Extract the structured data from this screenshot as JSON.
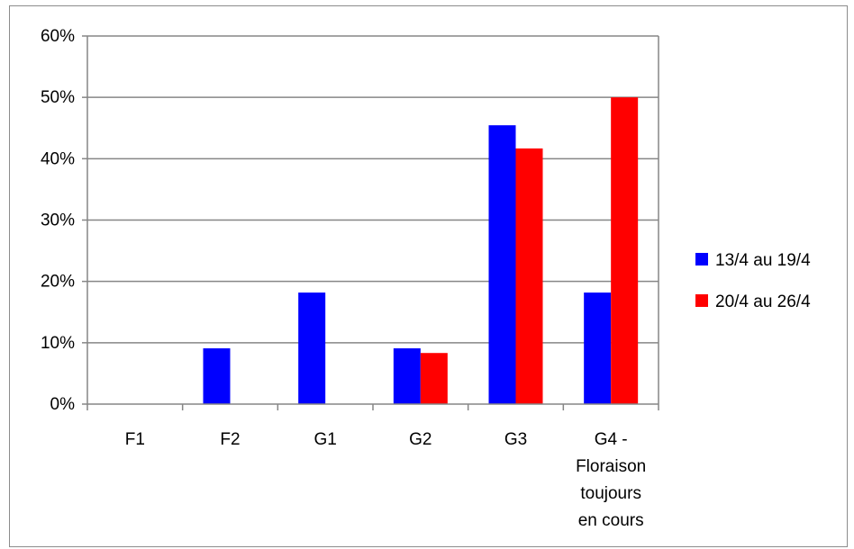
{
  "chart_data": {
    "type": "bar",
    "title": "",
    "xlabel": "",
    "ylabel": "",
    "ylim": [
      0,
      0.6
    ],
    "yticks": [
      0,
      0.1,
      0.2,
      0.3,
      0.4,
      0.5,
      0.6
    ],
    "ytick_labels": [
      "0%",
      "10%",
      "20%",
      "30%",
      "40%",
      "50%",
      "60%"
    ],
    "categories": [
      "F1",
      "F2",
      "G1",
      "G2",
      "G3",
      "G4 - Floraison toujours en cours"
    ],
    "category_lines": [
      [
        "F1"
      ],
      [
        "F2"
      ],
      [
        "G1"
      ],
      [
        "G2"
      ],
      [
        "G3"
      ],
      [
        "G4 -",
        "Floraison",
        "toujours",
        "en cours"
      ]
    ],
    "series": [
      {
        "name": "13/4 au 19/4",
        "color": "#0000ff",
        "values": [
          0,
          0.0909,
          0.1818,
          0.0909,
          0.4545,
          0.1818
        ]
      },
      {
        "name": "20/4 au 26/4",
        "color": "#ff0000",
        "values": [
          0,
          0,
          0,
          0.0833,
          0.4167,
          0.5
        ]
      }
    ],
    "grid": true,
    "legend_position": "right"
  }
}
